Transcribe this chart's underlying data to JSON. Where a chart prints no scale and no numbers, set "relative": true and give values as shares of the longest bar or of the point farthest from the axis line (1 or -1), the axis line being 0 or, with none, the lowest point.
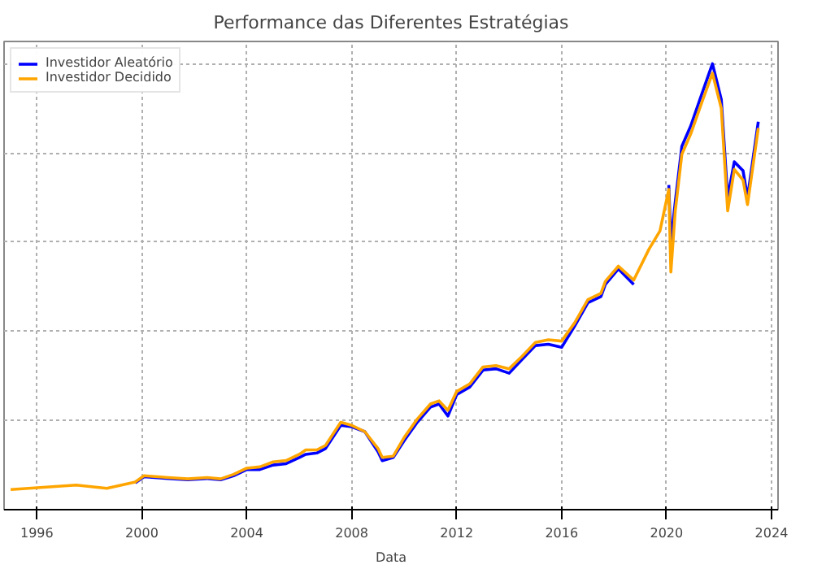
{
  "chart_data": {
    "type": "line",
    "title": "Performance das Diferentes Estratégias",
    "xlabel": "Data",
    "relative": true,
    "x": [
      "1995-01",
      "1997-07",
      "1998-09",
      "1999-10",
      "2000-02",
      "2001-01",
      "2001-10",
      "2002-07",
      "2003-01",
      "2003-07",
      "2004-01",
      "2004-07",
      "2005-01",
      "2005-07",
      "2006-01",
      "2006-04",
      "2006-09",
      "2007-01",
      "2007-08",
      "2008-01",
      "2008-07",
      "2009-01",
      "2009-03",
      "2009-08",
      "2010-01",
      "2010-07",
      "2011-01",
      "2011-05",
      "2011-09",
      "2012-01",
      "2012-07",
      "2013-01",
      "2013-07",
      "2014-01",
      "2014-07",
      "2015-01",
      "2015-07",
      "2016-01",
      "2016-07",
      "2017-01",
      "2017-07",
      "2017-09",
      "2018-03",
      "2018-10",
      "2019-05",
      "2019-10",
      "2020-02",
      "2020-03",
      "2020-05",
      "2020-08",
      "2020-12",
      "2021-05",
      "2021-10",
      "2022-02",
      "2022-05",
      "2022-08",
      "2022-12",
      "2023-02",
      "2023-07"
    ],
    "series": [
      {
        "name": "Investidor Aleatório",
        "color": "#0000ff",
        "values": [
          null,
          null,
          null,
          0.06,
          0.074,
          0.07,
          0.067,
          0.07,
          0.067,
          0.076,
          0.09,
          0.09,
          0.1,
          0.103,
          0.117,
          0.124,
          0.127,
          0.137,
          0.189,
          0.186,
          0.175,
          0.13,
          0.11,
          0.117,
          0.155,
          0.196,
          0.23,
          0.237,
          0.21,
          0.258,
          0.275,
          0.313,
          0.316,
          0.306,
          0.337,
          0.368,
          0.371,
          0.364,
          0.412,
          0.464,
          0.478,
          0.505,
          0.54,
          0.505,
          null,
          null,
          0.728,
          0.6,
          0.69,
          0.815,
          0.86,
          0.93,
          1.0,
          0.92,
          0.7,
          0.78,
          0.76,
          0.7,
          0.87
        ]
      },
      {
        "name": "Investidor Decidido",
        "color": "#ffa500",
        "values": [
          0.045,
          0.055,
          0.048,
          0.062,
          0.076,
          0.072,
          0.069,
          0.072,
          0.069,
          0.079,
          0.093,
          0.096,
          0.107,
          0.11,
          0.124,
          0.134,
          0.134,
          0.144,
          0.196,
          0.189,
          0.175,
          0.137,
          0.117,
          0.12,
          0.162,
          0.203,
          0.237,
          0.244,
          0.223,
          0.265,
          0.282,
          0.32,
          0.323,
          0.316,
          0.344,
          0.375,
          0.381,
          0.378,
          0.419,
          0.471,
          0.485,
          0.512,
          0.546,
          0.515,
          0.584,
          0.625,
          0.718,
          0.533,
          0.67,
          0.797,
          0.842,
          0.911,
          0.979,
          0.9,
          0.67,
          0.763,
          0.739,
          0.684,
          0.856
        ]
      }
    ],
    "xlim": [
      "1994-10",
      "2024-04"
    ],
    "xticks": [
      "1996",
      "2000",
      "2004",
      "2008",
      "2012",
      "2016",
      "2020",
      "2024"
    ],
    "grid": true,
    "legend": "top left"
  }
}
